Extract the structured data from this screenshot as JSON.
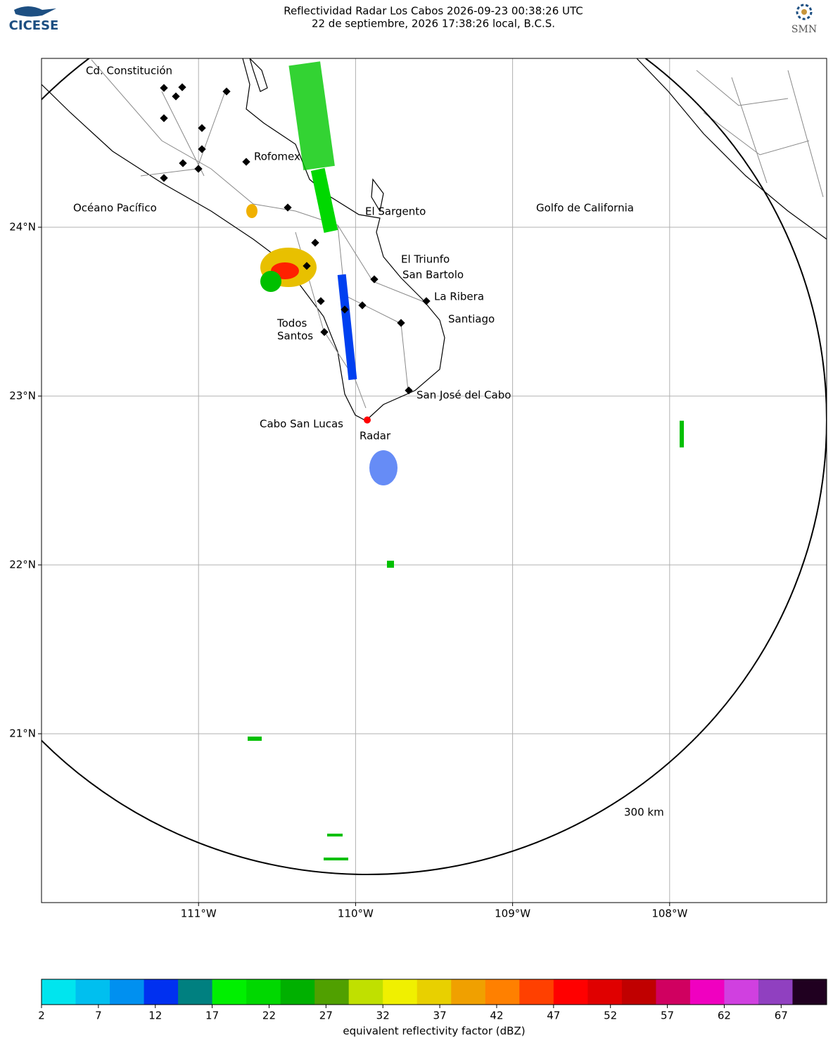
{
  "header": {
    "title": "Reflectividad Radar Los Cabos 2026-09-23 00:38:26 UTC",
    "subtitle": "22 de septiembre, 2026 17:38:26 local, B.C.S.",
    "logo_left": "CICESE",
    "logo_right": "SMN"
  },
  "map": {
    "xlim": [
      -112,
      -107
    ],
    "ylim": [
      20,
      25
    ],
    "lon_ticks": [
      {
        "value": -111,
        "label": "111°W"
      },
      {
        "value": -110,
        "label": "110°W"
      },
      {
        "value": -109,
        "label": "109°W"
      },
      {
        "value": -108,
        "label": "108°W"
      }
    ],
    "lat_ticks": [
      {
        "value": 24,
        "label": "24°N"
      },
      {
        "value": 23,
        "label": "23°N"
      },
      {
        "value": 22,
        "label": "22°N"
      },
      {
        "value": 21,
        "label": "21°N"
      }
    ],
    "grid": true,
    "places": [
      "Cd. Constitución",
      "Rofomex",
      "Océano Pacífico",
      "El Sargento",
      "Golfo de California",
      "El Triunfo",
      "San Bartolo",
      "La Ribera",
      "Santiago",
      "Todos",
      "Santos",
      "San José del Cabo",
      "Cabo San Lucas",
      "Radar"
    ],
    "range_label": "300 km"
  },
  "colorbar": {
    "label": "equivalent reflectivity factor (dBZ)",
    "lim": [
      2,
      71
    ],
    "ticks": [
      2,
      7,
      12,
      17,
      22,
      27,
      32,
      37,
      42,
      47,
      52,
      57,
      62,
      67
    ],
    "colors": [
      "#00e5ee",
      "#00bfef",
      "#0090f0",
      "#0030f0",
      "#008080",
      "#00f000",
      "#00d800",
      "#00b000",
      "#50a000",
      "#c0e000",
      "#f0f000",
      "#e8d000",
      "#f0a000",
      "#ff8000",
      "#ff4000",
      "#ff0000",
      "#e00000",
      "#c00000",
      "#d00060",
      "#f000c0",
      "#d040e0",
      "#9040c0",
      "#200020"
    ]
  }
}
